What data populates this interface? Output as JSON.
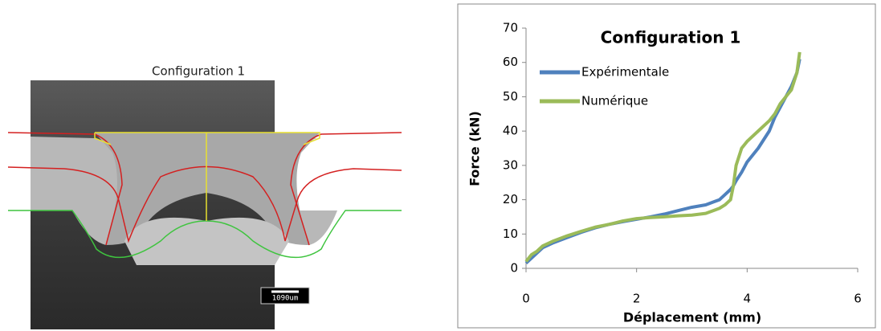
{
  "image": {
    "caption": "Configuration 1",
    "scale_bar": "1090um"
  },
  "chart_data": {
    "type": "line",
    "title": "Configuration 1",
    "x_label": "Déplacement (mm)",
    "y_label": "Force (kN)",
    "xlim": [
      0,
      6
    ],
    "xticks": [
      0,
      2,
      4,
      6
    ],
    "ylim": [
      0,
      70
    ],
    "yticks": [
      0,
      10,
      20,
      30,
      40,
      50,
      60,
      70
    ],
    "grid": false,
    "legend": "upper left",
    "x": [
      0,
      0.1,
      0.2,
      0.3,
      0.5,
      0.75,
      1,
      1.25,
      1.5,
      1.75,
      2,
      2.25,
      2.5,
      2.75,
      3,
      3.25,
      3.5,
      3.6,
      3.7,
      3.75,
      3.8,
      3.9,
      4,
      4.2,
      4.4,
      4.5,
      4.6,
      4.7,
      4.8,
      4.9,
      4.95
    ],
    "series": [
      {
        "name": "Expérimentale",
        "color": "#4f81bd",
        "values": [
          1.5,
          3,
          4.5,
          6,
          7.5,
          9,
          10.5,
          11.8,
          12.8,
          13.6,
          14.3,
          15,
          15.8,
          16.8,
          17.8,
          18.5,
          20,
          21.5,
          23,
          24,
          25.5,
          28,
          31,
          35,
          40,
          44,
          47,
          50,
          53,
          57,
          61
        ]
      },
      {
        "name": "Numérique",
        "color": "#9bbb59",
        "values": [
          2,
          4,
          5,
          6.5,
          8,
          9.5,
          10.8,
          12,
          12.8,
          13.8,
          14.5,
          14.8,
          15,
          15.3,
          15.5,
          16,
          17.5,
          18.5,
          20,
          24,
          30,
          35,
          37,
          40,
          43,
          45,
          48,
          50,
          52,
          57,
          63
        ]
      }
    ]
  }
}
